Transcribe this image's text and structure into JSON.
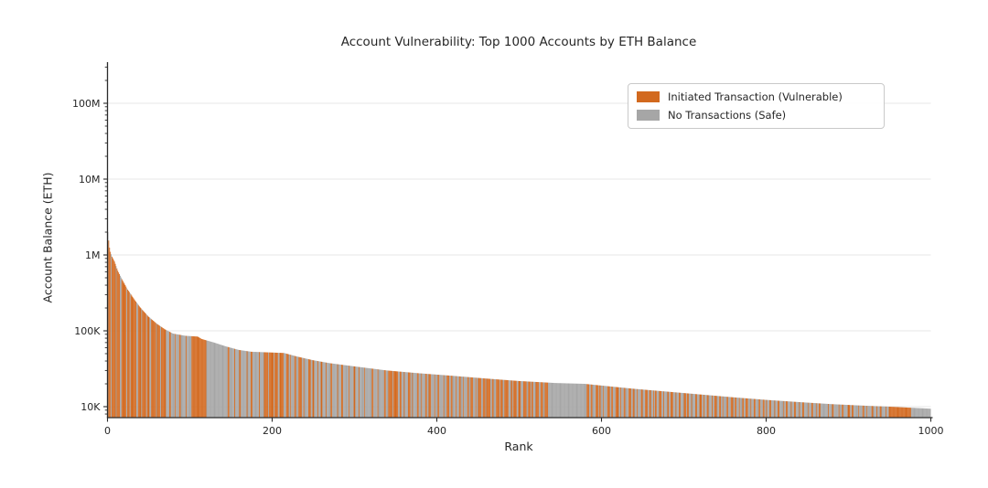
{
  "chart_data": {
    "type": "bar",
    "title": "Account Vulnerability: Top 1000 Accounts by ETH Balance",
    "xlabel": "Rank",
    "ylabel": "Account Balance (ETH)",
    "y_scale": "log",
    "ylim": [
      7000,
      350000000
    ],
    "x_range": [
      0,
      1000
    ],
    "n_bars": 1000,
    "grid": "horizontal-major",
    "y_ticks": [
      {
        "value": 10000,
        "label": "10K"
      },
      {
        "value": 100000,
        "label": "100K"
      },
      {
        "value": 1000000,
        "label": "1M"
      },
      {
        "value": 10000000,
        "label": "10M"
      },
      {
        "value": 100000000,
        "label": "100M"
      }
    ],
    "x_ticks": [
      {
        "value": 0,
        "label": "0"
      },
      {
        "value": 200,
        "label": "200"
      },
      {
        "value": 400,
        "label": "400"
      },
      {
        "value": 600,
        "label": "600"
      },
      {
        "value": 800,
        "label": "800"
      },
      {
        "value": 1000,
        "label": "1000"
      }
    ],
    "legend": {
      "position": "upper right",
      "items": [
        {
          "key": "v",
          "label": "Initiated Transaction (Vulnerable)",
          "color": "#D2691E"
        },
        {
          "key": "s",
          "label": "No Transactions (Safe)",
          "color": "#A6A6A6"
        }
      ]
    },
    "balance_profile": [
      [
        1,
        2000000
      ],
      [
        2,
        1550000
      ],
      [
        3,
        1250000
      ],
      [
        4,
        1100000
      ],
      [
        6,
        950000
      ],
      [
        9,
        820000
      ],
      [
        13,
        620000
      ],
      [
        18,
        480000
      ],
      [
        25,
        350000
      ],
      [
        32,
        270000
      ],
      [
        40,
        205000
      ],
      [
        50,
        155000
      ],
      [
        60,
        125000
      ],
      [
        70,
        105000
      ],
      [
        80,
        92000
      ],
      [
        95,
        86000
      ],
      [
        110,
        84000
      ],
      [
        115,
        78000
      ],
      [
        130,
        70000
      ],
      [
        145,
        62000
      ],
      [
        160,
        56000
      ],
      [
        175,
        53000
      ],
      [
        215,
        51000
      ],
      [
        230,
        46000
      ],
      [
        250,
        41000
      ],
      [
        270,
        37500
      ],
      [
        300,
        34000
      ],
      [
        340,
        30000
      ],
      [
        380,
        27500
      ],
      [
        420,
        25500
      ],
      [
        460,
        23500
      ],
      [
        500,
        21800
      ],
      [
        545,
        20500
      ],
      [
        580,
        20000
      ],
      [
        600,
        19000
      ],
      [
        640,
        17200
      ],
      [
        680,
        15800
      ],
      [
        720,
        14500
      ],
      [
        760,
        13300
      ],
      [
        800,
        12300
      ],
      [
        840,
        11500
      ],
      [
        880,
        10800
      ],
      [
        920,
        10300
      ],
      [
        950,
        10000
      ],
      [
        975,
        9700
      ],
      [
        1000,
        9400
      ]
    ],
    "status_runs_rle": "1s3v1s5v1s4v2s6v1s3v1s7v2s4v1s5v1s3v2s6v1s4v1s6v4s2v5s1v4s2v6s1v4s2s18v26s2v6s1v5s2v7s1v4s2v8s1v5s5v1s6v1s4v2s3v2v3s3v2s1v4s2v3s4v2s1v5s3v2s2v4s1v3s2v4s1v5s2v6s1v4s2v7s1v5s2v4s1v6s1v8s2v5s1v7s2v3s5v1s6v2s2v3s1v4s3v2s1v5s2v3s1v4s2v2s3v4s1v3s2v5s1v3s3v2s2v4s1v3s2v3s1v4s2v2s3v3s1v2s4v2s3v1s5v2s2v3s4v1s3v2s5v3s2v1s4v2s3v3s4v2s3v1s2v3s4v2s3v2s4v2s45s3v2s2v4s3v1s2v3s1v4s3v2s2v3s4v2s1v3s2v4s3v2s2v3s1v4s2v3s3v2s2v3s1v1s2v3s3v2s1v4s2v2s3v3s1v3s2v4s3v1s2v3s1v4s2v3s3v2s1v3s2v4s1v2s3v3s2v2s1v4s2v3s3v2s2v3s1v3s2v2s3v3s1v3s2v4s2v3s2v2s1v3s2v4s1v3s2v5s1v2s2v4s1v3s2v4s1v3s2v5s1v3s2v4s1v2s2v4s5s1v4s2v6s1v3s2v5s3v2s2v6s1v4s2v3s1v5s2v4s1v3s2v5s1v3s27v24s"
  }
}
